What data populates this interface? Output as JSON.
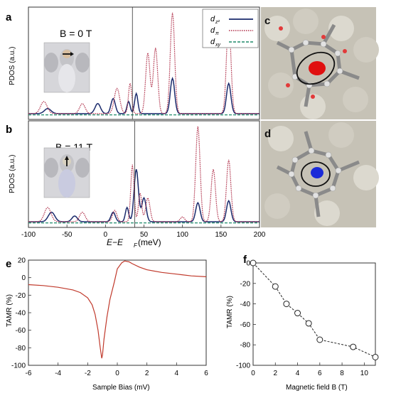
{
  "panels": {
    "a": {
      "letter": "a",
      "field_label": "B = 0 T",
      "ylabel": "PDOS (a.u.)",
      "legend": [
        "d",
        "d",
        "d"
      ],
      "legend_subs": [
        "z²",
        "π",
        "xy"
      ],
      "colors": {
        "dz2": "#1a2a6c",
        "dpi": "#b0304a",
        "dxy": "#1f8a6a"
      }
    },
    "b": {
      "letter": "b",
      "field_label": "B = 11 T",
      "ylabel": "PDOS (a.u.)"
    },
    "c": {
      "letter": "c"
    },
    "d": {
      "letter": "d"
    },
    "e": {
      "letter": "e"
    },
    "f": {
      "letter": "f"
    },
    "ab_xaxis": {
      "ticks": [
        "-100",
        "-50",
        "0",
        "50",
        "100",
        "150",
        "200"
      ],
      "label_main": "E−E",
      "label_sub": "F",
      "label_unit": " (meV)"
    }
  },
  "chart_data": [
    {
      "type": "line",
      "panel": "e",
      "title": "",
      "xlabel": "Sample Bias (mV)",
      "ylabel": "TAMR (%)",
      "xlim": [
        -6,
        6
      ],
      "ylim": [
        -100,
        20
      ],
      "xticks": [
        "-6",
        "-4",
        "-2",
        "0",
        "2",
        "4",
        "6"
      ],
      "yticks": [
        "20",
        "0",
        "-20",
        "-40",
        "-60",
        "-80",
        "-100"
      ],
      "series": [
        {
          "color": "#c0392b",
          "x": [
            -6,
            -5,
            -4,
            -3,
            -2.5,
            -2,
            -1.7,
            -1.5,
            -1.3,
            -1.15,
            -1.05,
            -1.0,
            -0.9,
            -0.7,
            -0.5,
            -0.2,
            0,
            0.3,
            0.5,
            0.8,
            1,
            1.5,
            2,
            3,
            4,
            5,
            6
          ],
          "y": [
            -8,
            -9,
            -11,
            -14,
            -17,
            -23,
            -31,
            -42,
            -60,
            -80,
            -92,
            -88,
            -70,
            -45,
            -25,
            -5,
            10,
            17,
            19,
            18,
            16,
            12,
            9,
            6,
            4,
            2,
            1
          ]
        }
      ]
    },
    {
      "type": "scatter",
      "panel": "f",
      "title": "",
      "xlabel": "Magnetic field B (T)",
      "ylabel": "TAMR (%)",
      "xlim": [
        0,
        11
      ],
      "ylim": [
        -100,
        0
      ],
      "xticks": [
        "0",
        "2",
        "4",
        "6",
        "8",
        "10"
      ],
      "yticks": [
        "0",
        "-20",
        "-40",
        "-60",
        "-80",
        "-100"
      ],
      "series": [
        {
          "color": "#222",
          "x": [
            0,
            2,
            3,
            4,
            5,
            6,
            9,
            11
          ],
          "y": [
            0,
            -23,
            -40,
            -49,
            -59,
            -75,
            -82,
            -92
          ]
        }
      ]
    },
    {
      "type": "line",
      "panel": "a",
      "title": "",
      "xlabel": "",
      "ylabel": "PDOS (a.u.)",
      "xlim": [
        -100,
        200
      ],
      "vline": 35,
      "series": [
        {
          "name": "dz2",
          "peaks": [
            [
              -75,
              0.05,
              6
            ],
            [
              -10,
              0.1,
              5
            ],
            [
              10,
              0.15,
              4
            ],
            [
              30,
              0.12,
              3
            ],
            [
              40,
              0.2,
              3
            ],
            [
              87,
              0.35,
              4
            ],
            [
              160,
              0.3,
              4
            ]
          ]
        },
        {
          "name": "dpi",
          "peaks": [
            [
              -80,
              0.12,
              6
            ],
            [
              -30,
              0.1,
              5
            ],
            [
              15,
              0.25,
              5
            ],
            [
              32,
              0.3,
              3
            ],
            [
              55,
              0.6,
              4
            ],
            [
              65,
              0.65,
              4
            ],
            [
              87,
              1.0,
              4
            ],
            [
              160,
              0.95,
              4
            ]
          ]
        },
        {
          "name": "dxy",
          "peaks": []
        }
      ]
    },
    {
      "type": "line",
      "panel": "b",
      "title": "",
      "xlabel": "",
      "ylabel": "PDOS (a.u.)",
      "xlim": [
        -100,
        200
      ],
      "vline": 38,
      "series": [
        {
          "name": "dz2",
          "peaks": [
            [
              -70,
              0.1,
              6
            ],
            [
              -40,
              0.06,
              5
            ],
            [
              10,
              0.1,
              4
            ],
            [
              28,
              0.15,
              3
            ],
            [
              40,
              0.55,
              4
            ],
            [
              50,
              0.25,
              4
            ],
            [
              120,
              0.2,
              4
            ],
            [
              160,
              0.22,
              4
            ]
          ]
        },
        {
          "name": "dpi",
          "peaks": [
            [
              -75,
              0.15,
              6
            ],
            [
              -30,
              0.1,
              5
            ],
            [
              12,
              0.12,
              4
            ],
            [
              35,
              0.6,
              3
            ],
            [
              45,
              0.3,
              3
            ],
            [
              55,
              0.25,
              4
            ],
            [
              100,
              0.05,
              4
            ],
            [
              120,
              1.0,
              4
            ],
            [
              140,
              0.55,
              4
            ],
            [
              160,
              0.65,
              4
            ]
          ]
        },
        {
          "name": "dxy",
          "peaks": []
        }
      ]
    }
  ]
}
